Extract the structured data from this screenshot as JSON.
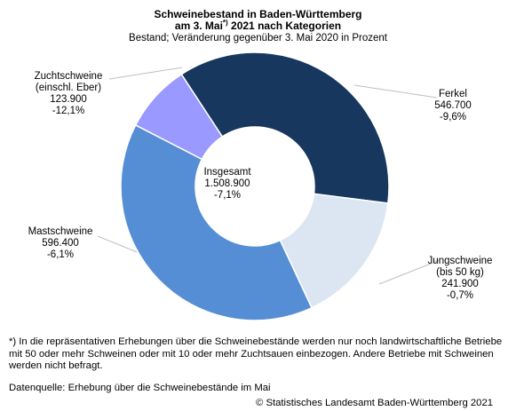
{
  "header": {
    "title_line1": "Schweinebestand in Baden-Württemberg",
    "title_line2_prefix": "am 3. Mai",
    "title_line2_sup": "*)",
    "title_line2_suffix": " 2021 nach Kategorien",
    "subtitle": "Bestand; Veränderung gegenüber 3. Mai 2020 in Prozent"
  },
  "chart_data": {
    "type": "pie",
    "variant": "donut",
    "title": "Schweinebestand in Baden-Württemberg am 3. Mai*) 2021 nach Kategorien",
    "subtitle": "Bestand; Veränderung gegenüber 3. Mai 2020 in Prozent",
    "center": {
      "label": "Insgesamt",
      "value": "1.508.900",
      "change": "-7,1%"
    },
    "slices": [
      {
        "lines": [
          "Ferkel"
        ],
        "value": 546700,
        "value_label": "546.700",
        "change": "-9,6%",
        "color": "#17375e"
      },
      {
        "lines": [
          "Jungschweine",
          "(bis 50 kg)"
        ],
        "value": 241900,
        "value_label": "241.900",
        "change": "-0,7%",
        "color": "#dce6f2"
      },
      {
        "lines": [
          "Mastschweine"
        ],
        "value": 596400,
        "value_label": "596.400",
        "change": "-6,1%",
        "color": "#558ed5"
      },
      {
        "lines": [
          "Zuchtschweine",
          "(einschl. Eber)"
        ],
        "value": 123900,
        "value_label": "123.900",
        "change": "-12,1%",
        "color": "#9999ff"
      }
    ]
  },
  "footnote": "*) In die repräsentativen Erhebungen über die Schweinebestände werden nur noch landwirtschaftliche Betriebe mit 50 oder mehr Schweinen oder mit 10 oder mehr Zuchtsauen einbezogen. Andere Betriebe mit Schweinen werden nicht befragt.",
  "source": "Datenquelle: Erhebung über die Schweinebestände im Mai",
  "copyright": "© Statistisches Landesamt Baden-Württemberg 2021"
}
